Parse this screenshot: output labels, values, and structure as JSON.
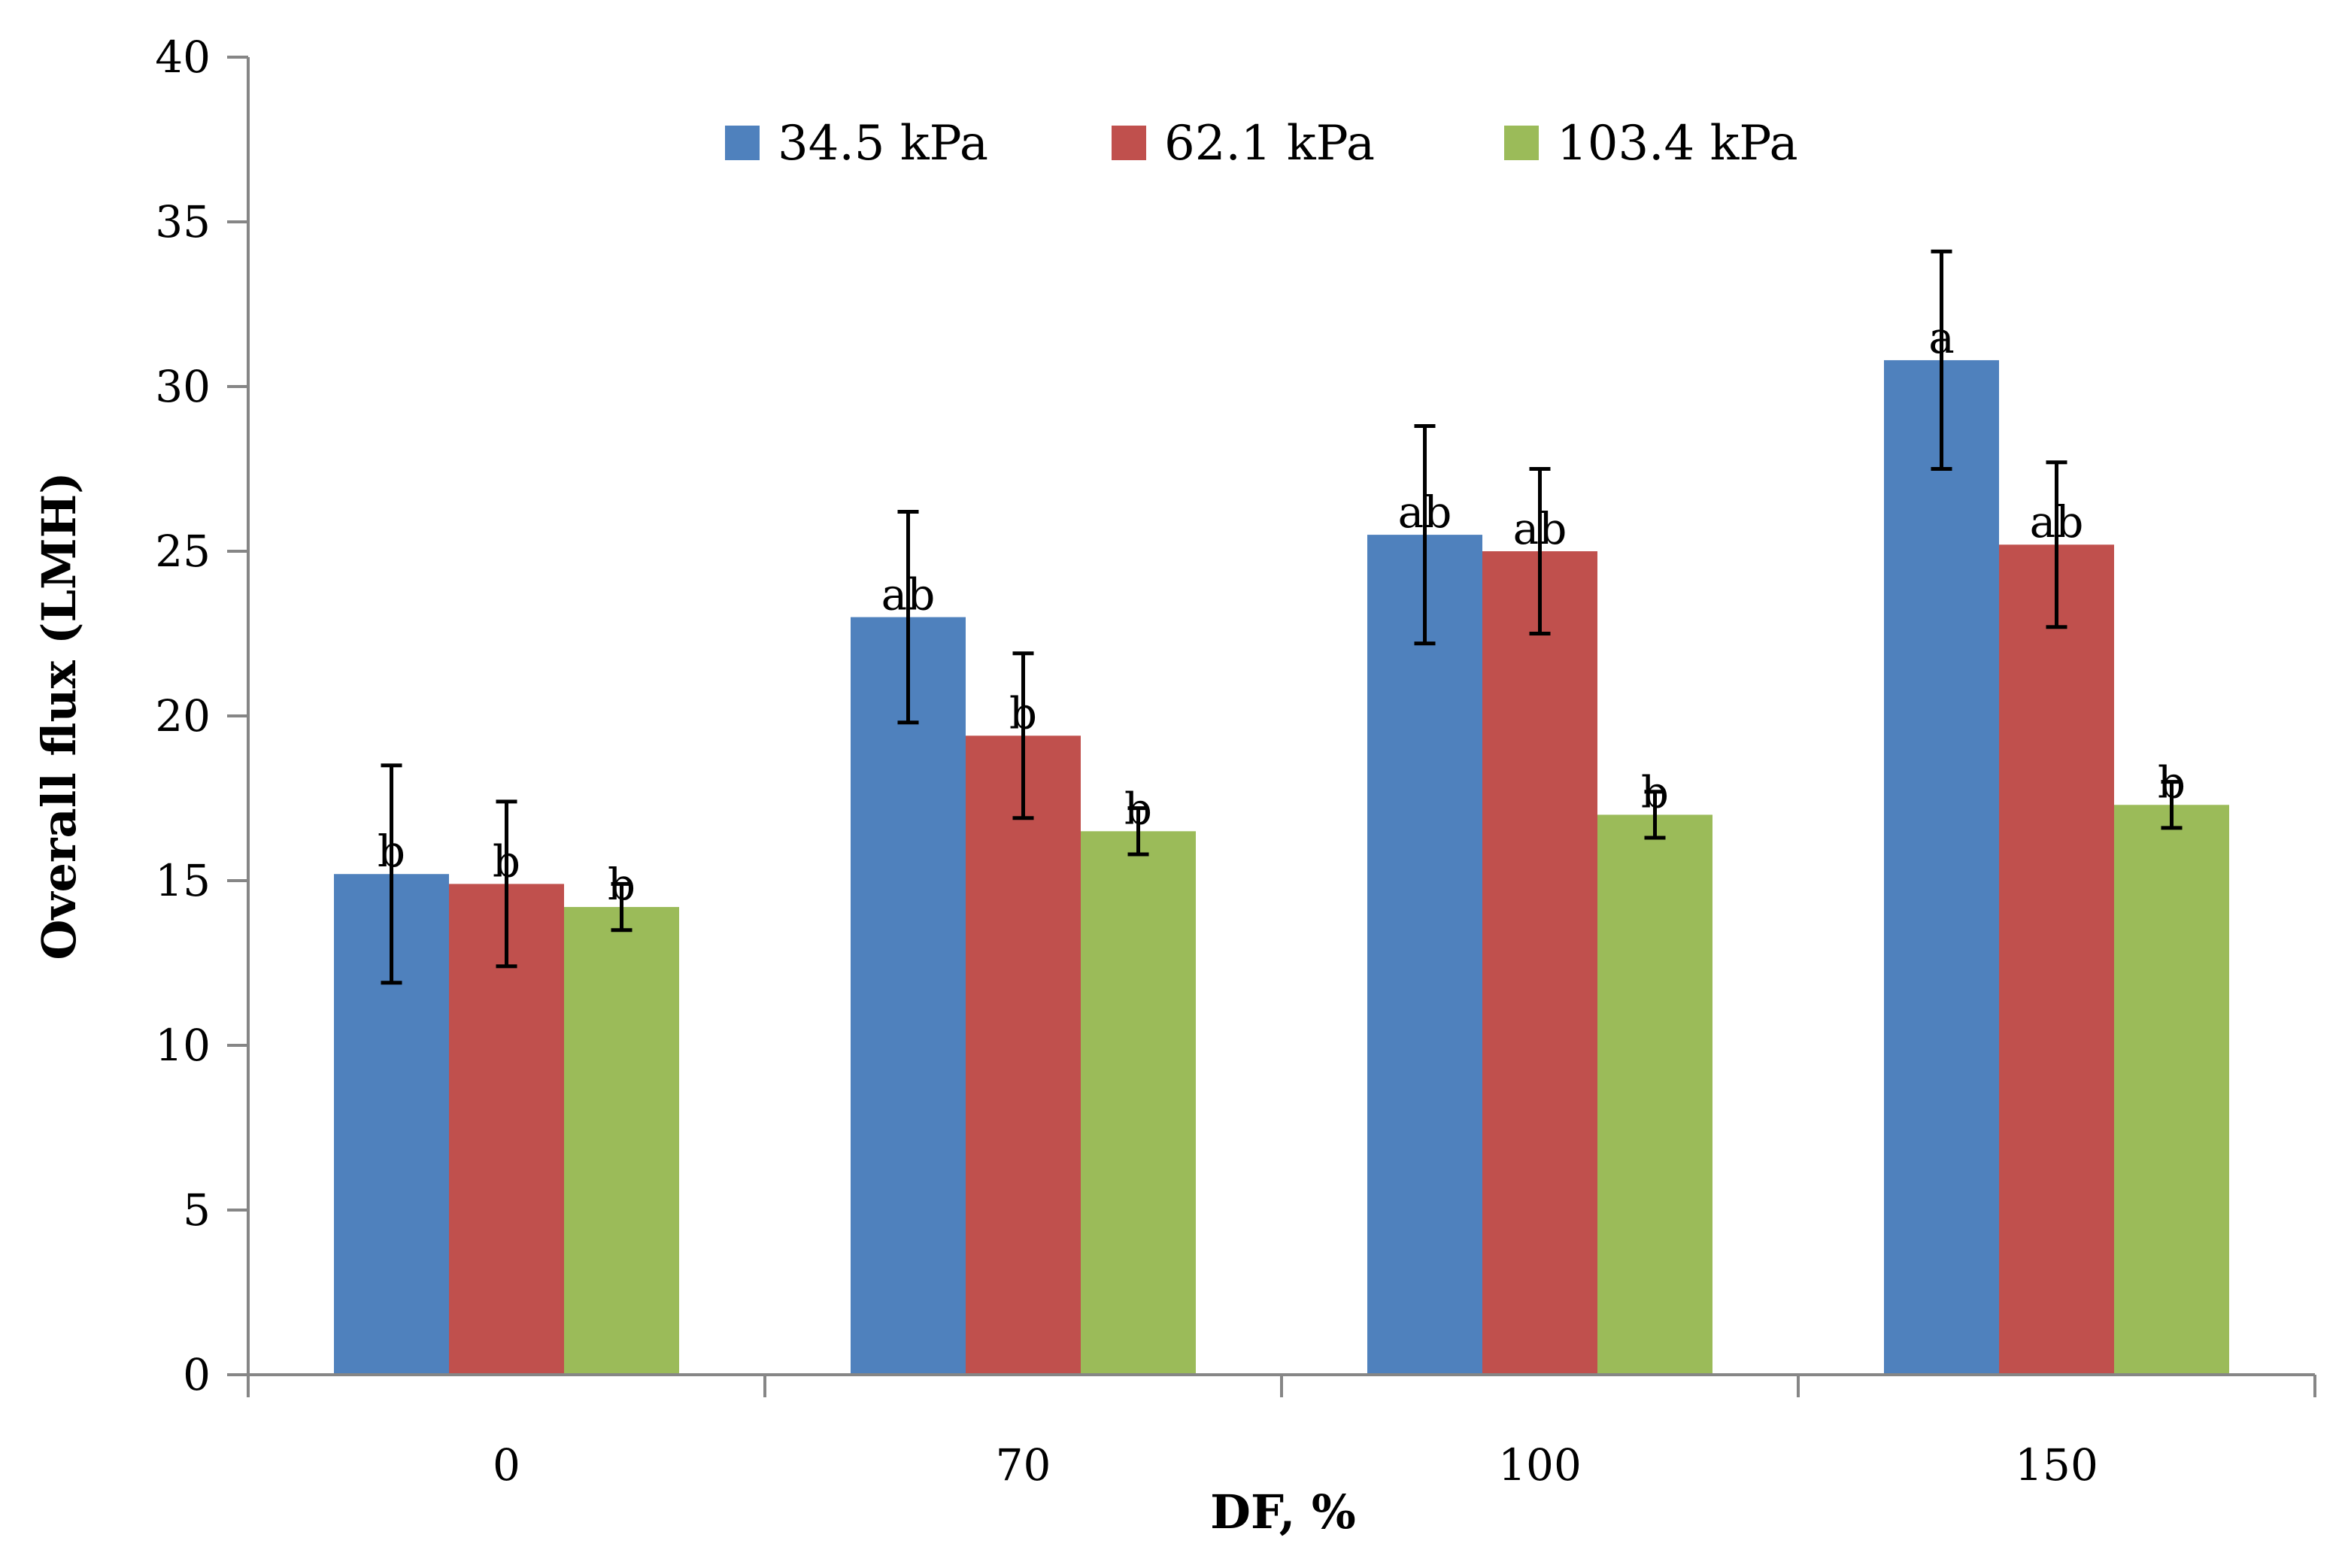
{
  "chart_data": {
    "type": "bar",
    "title": "",
    "xlabel": "DF, %",
    "ylabel": "Overall  flux (LMH)",
    "ylim": [
      0,
      40
    ],
    "yticks": [
      0,
      5,
      10,
      15,
      20,
      25,
      30,
      35,
      40
    ],
    "categories": [
      "0",
      "70",
      "100",
      "150"
    ],
    "legend_position": "top",
    "grid": false,
    "series": [
      {
        "name": "34.5 kPa",
        "color": "#4F81BD",
        "values": [
          15.2,
          23.0,
          25.5,
          30.8
        ],
        "errors": [
          3.3,
          3.2,
          3.3,
          3.3
        ],
        "labels": [
          "b",
          "ab",
          "ab",
          "a"
        ]
      },
      {
        "name": "62.1 kPa",
        "color": "#C0504D",
        "values": [
          14.9,
          19.4,
          25.0,
          25.2
        ],
        "errors": [
          2.5,
          2.5,
          2.5,
          2.5
        ],
        "labels": [
          "b",
          "b",
          "ab",
          "ab"
        ]
      },
      {
        "name": "103.4 kPa",
        "color": "#9BBB59",
        "values": [
          14.2,
          16.5,
          17.0,
          17.3
        ],
        "errors": [
          0.7,
          0.7,
          0.7,
          0.7
        ],
        "labels": [
          "b",
          "b",
          "b",
          "b"
        ]
      }
    ]
  }
}
